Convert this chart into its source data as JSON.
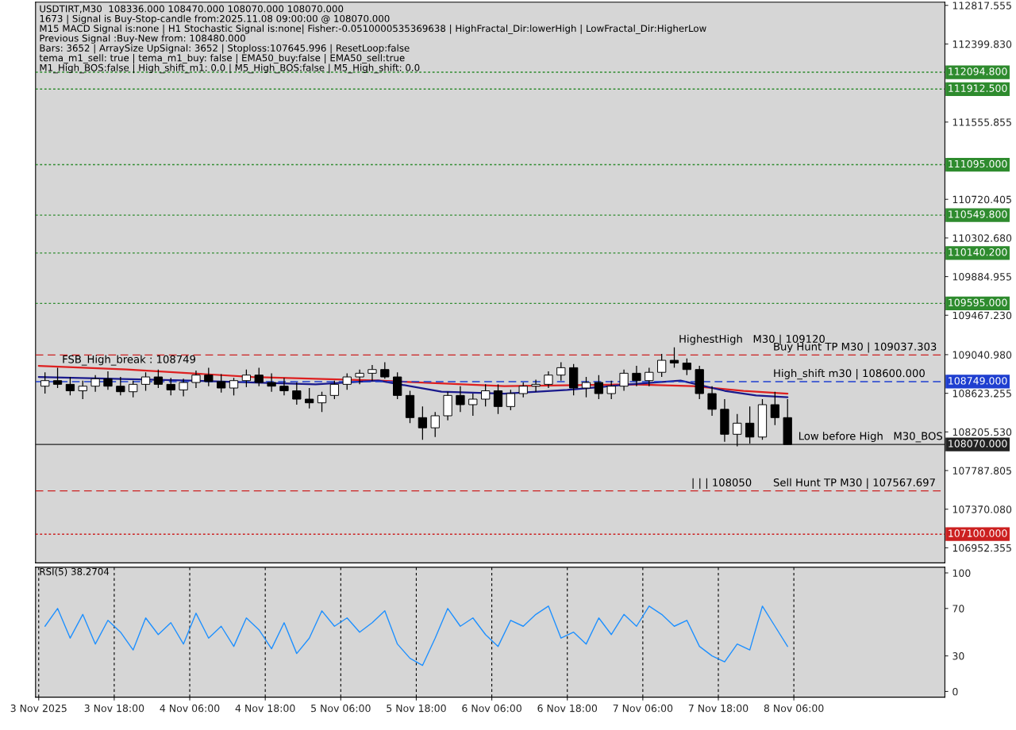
{
  "chart_data": [
    {
      "type": "candlestick",
      "title": "USDTIRT,M30  108336.000 108470.000 108070.000 108070.000",
      "x": [
        "2025-11-03T07:00",
        "2025-11-03T09:00",
        "2025-11-03T11:00",
        "2025-11-03T13:00",
        "2025-11-03T15:00",
        "2025-11-03T17:00",
        "2025-11-03T19:00",
        "2025-11-03T21:00",
        "2025-11-03T23:00",
        "2025-11-04T01:00",
        "2025-11-04T03:00",
        "2025-11-04T05:00",
        "2025-11-04T07:00",
        "2025-11-04T09:00",
        "2025-11-04T11:00",
        "2025-11-04T13:00",
        "2025-11-04T15:00",
        "2025-11-04T17:00",
        "2025-11-04T19:00",
        "2025-11-04T21:00",
        "2025-11-04T23:00",
        "2025-11-05T01:00",
        "2025-11-05T03:00",
        "2025-11-05T05:00",
        "2025-11-05T07:00",
        "2025-11-05T09:00",
        "2025-11-05T11:00",
        "2025-11-05T13:00",
        "2025-11-05T15:00",
        "2025-11-05T17:00",
        "2025-11-05T19:00",
        "2025-11-05T21:00",
        "2025-11-05T23:00",
        "2025-11-06T01:00",
        "2025-11-06T03:00",
        "2025-11-06T05:00",
        "2025-11-06T07:00",
        "2025-11-06T09:00",
        "2025-11-06T11:00",
        "2025-11-06T13:00",
        "2025-11-06T15:00",
        "2025-11-06T17:00",
        "2025-11-06T19:00",
        "2025-11-06T21:00",
        "2025-11-06T23:00",
        "2025-11-07T01:00",
        "2025-11-07T03:00",
        "2025-11-07T05:00",
        "2025-11-07T07:00",
        "2025-11-07T09:00",
        "2025-11-07T11:00",
        "2025-11-07T13:00",
        "2025-11-07T15:00",
        "2025-11-07T17:00",
        "2025-11-07T19:00",
        "2025-11-07T21:00",
        "2025-11-07T23:00",
        "2025-11-08T01:00",
        "2025-11-08T03:00",
        "2025-11-08T05:00"
      ],
      "ohlc": [
        [
          108700,
          108850,
          108620,
          108760
        ],
        [
          108760,
          108900,
          108680,
          108720
        ],
        [
          108720,
          108800,
          108600,
          108650
        ],
        [
          108650,
          108760,
          108560,
          108700
        ],
        [
          108700,
          108820,
          108640,
          108780
        ],
        [
          108780,
          108860,
          108660,
          108700
        ],
        [
          108700,
          108800,
          108600,
          108640
        ],
        [
          108640,
          108760,
          108580,
          108720
        ],
        [
          108720,
          108850,
          108650,
          108800
        ],
        [
          108800,
          108880,
          108680,
          108720
        ],
        [
          108720,
          108790,
          108600,
          108660
        ],
        [
          108660,
          108780,
          108590,
          108740
        ],
        [
          108740,
          108870,
          108680,
          108820
        ],
        [
          108820,
          108900,
          108700,
          108750
        ],
        [
          108750,
          108830,
          108630,
          108680
        ],
        [
          108680,
          108790,
          108600,
          108760
        ],
        [
          108760,
          108880,
          108690,
          108820
        ],
        [
          108820,
          108900,
          108700,
          108740
        ],
        [
          108740,
          108840,
          108640,
          108700
        ],
        [
          108700,
          108790,
          108600,
          108650
        ],
        [
          108650,
          108740,
          108500,
          108560
        ],
        [
          108560,
          108680,
          108460,
          108520
        ],
        [
          108520,
          108640,
          108420,
          108600
        ],
        [
          108600,
          108760,
          108560,
          108720
        ],
        [
          108720,
          108840,
          108660,
          108800
        ],
        [
          108800,
          108880,
          108720,
          108840
        ],
        [
          108840,
          108930,
          108760,
          108880
        ],
        [
          108880,
          108960,
          108780,
          108800
        ],
        [
          108800,
          108850,
          108560,
          108600
        ],
        [
          108600,
          108650,
          108300,
          108360
        ],
        [
          108360,
          108480,
          108120,
          108250
        ],
        [
          108250,
          108420,
          108150,
          108380
        ],
        [
          108380,
          108640,
          108330,
          108600
        ],
        [
          108600,
          108700,
          108420,
          108500
        ],
        [
          108500,
          108620,
          108380,
          108560
        ],
        [
          108560,
          108720,
          108480,
          108650
        ],
        [
          108650,
          108720,
          108400,
          108480
        ],
        [
          108480,
          108660,
          108440,
          108620
        ],
        [
          108620,
          108740,
          108580,
          108700
        ],
        [
          108700,
          108770,
          108640,
          108720
        ],
        [
          108720,
          108860,
          108680,
          108820
        ],
        [
          108820,
          108960,
          108760,
          108900
        ],
        [
          108900,
          108940,
          108600,
          108680
        ],
        [
          108680,
          108800,
          108580,
          108740
        ],
        [
          108740,
          108820,
          108560,
          108620
        ],
        [
          108620,
          108760,
          108560,
          108700
        ],
        [
          108700,
          108880,
          108650,
          108840
        ],
        [
          108840,
          108920,
          108700,
          108760
        ],
        [
          108760,
          108900,
          108700,
          108850
        ],
        [
          108850,
          109050,
          108800,
          108980
        ],
        [
          108980,
          109120,
          108900,
          108950
        ],
        [
          108950,
          109000,
          108820,
          108880
        ],
        [
          108880,
          108920,
          108560,
          108620
        ],
        [
          108620,
          108700,
          108380,
          108450
        ],
        [
          108450,
          108560,
          108100,
          108180
        ],
        [
          108180,
          108400,
          108050,
          108300
        ],
        [
          108300,
          108480,
          108080,
          108150
        ],
        [
          108150,
          108560,
          108120,
          108500
        ],
        [
          108500,
          108640,
          108280,
          108360
        ],
        [
          108360,
          108560,
          108070,
          108070
        ]
      ],
      "series": [
        {
          "type": "line",
          "color": "#dd2020",
          "x": [
            "2025-11-03T06:00",
            "2025-11-03T20:00",
            "2025-11-04T16:00",
            "2025-11-05T12:00",
            "2025-11-06T08:00",
            "2025-11-07T04:00",
            "2025-11-07T14:00",
            "2025-11-07T22:00",
            "2025-11-08T05:00"
          ],
          "values": [
            108920,
            108880,
            108800,
            108760,
            108700,
            108720,
            108700,
            108650,
            108620
          ]
        },
        {
          "type": "line",
          "color": "#1a1a8c",
          "x": [
            "2025-11-03T06:00",
            "2025-11-04T06:00",
            "2025-11-05T02:00",
            "2025-11-05T12:00",
            "2025-11-05T22:00",
            "2025-11-06T08:00",
            "2025-11-06T18:00",
            "2025-11-07T04:00",
            "2025-11-07T12:00",
            "2025-11-07T19:00",
            "2025-11-08T00:00",
            "2025-11-08T05:00"
          ],
          "values": [
            108800,
            108760,
            108720,
            108760,
            108640,
            108620,
            108660,
            108720,
            108760,
            108650,
            108600,
            108580
          ]
        }
      ],
      "ref_lines": [
        {
          "axis": "y",
          "value": 112094.8,
          "label": "112094.800",
          "color": "#2e8b2e",
          "line_style": "dotted"
        },
        {
          "axis": "y",
          "value": 111912.5,
          "label": "111912.500",
          "color": "#2e8b2e",
          "line_style": "dotted"
        },
        {
          "axis": "y",
          "value": 111095,
          "label": "111095.000",
          "color": "#2e8b2e",
          "line_style": "dotted"
        },
        {
          "axis": "y",
          "value": 110549.8,
          "label": "110549.800",
          "color": "#2e8b2e",
          "line_style": "dotted"
        },
        {
          "axis": "y",
          "value": 110140.2,
          "label": "110140.200",
          "color": "#2e8b2e",
          "line_style": "dotted"
        },
        {
          "axis": "y",
          "value": 109595,
          "label": "109595.000",
          "color": "#2e8b2e",
          "line_style": "dotted"
        },
        {
          "axis": "y",
          "value": 108749,
          "label": "108749.000",
          "color": "#1f3fd0",
          "line_style": "dashed"
        },
        {
          "axis": "y",
          "value": 108070,
          "label": "108070.000",
          "color": "#222222",
          "line_style": "solid"
        },
        {
          "axis": "y",
          "value": 107100,
          "label": "107100.000",
          "color": "#cc2020",
          "line_style": "dotted"
        },
        {
          "axis": "y",
          "value": 109037.303,
          "color": "#cc2020",
          "line_style": "dashed"
        },
        {
          "axis": "y",
          "value": 107567.697,
          "color": "#cc2020",
          "line_style": "dashed"
        }
      ],
      "annotations": [
        "1673 | Signal is Buy-Stop-candle from:2025.11.08 09:00:00 @ 108070.000",
        "M15 MACD Signal is:none | H1 Stochastic Signal is:none| Fisher:-0.0510000535369638 | HighFractal_Dir:lowerHigh | LowFractal_Dir:HigherLow",
        "Previous Signal :Buy-New from: 108480.000",
        "Bars: 3652 | ArraySize UpSignal: 3652 | Stoploss:107645.996 | ResetLoop:false",
        "tema_m1_sell: true | tema_m1_buy: false | EMA50_buy:false | EMA50_sell:true",
        "M1_High_BOS:false | High_shift_m1: 0.0 | M5_High_BOS:false | M5_High_shift: 0.0",
        {
          "text": "FSB_High_break : 108749",
          "x": "2025-11-03T09:00",
          "y": 108900
        },
        {
          "text": "HighestHigh   M30 | 109120",
          "x": "2025-11-07T11:00",
          "y": 109120
        },
        {
          "text": "Buy Hunt TP M30 | 109037.303",
          "x": "2025-11-08T02:00",
          "y": 109037.303
        },
        {
          "text": "High_shift m30 | 108600.000",
          "x": "2025-11-08T02:00",
          "y": 108749
        },
        {
          "text": "Low before High   M30_BOS",
          "x": "2025-11-08T06:00",
          "y": 108070
        },
        {
          "text": "| | | 108050",
          "x": "2025-11-07T13:00",
          "y": 107567.697
        },
        {
          "text": "Sell Hunt TP M30 | 107567.697",
          "x": "2025-11-08T02:00",
          "y": 107567.697
        }
      ],
      "xlim": [
        "2025-11-03T05:30",
        "2025-11-09T06:00"
      ],
      "ylim": [
        106790,
        112852
      ],
      "yticks": [
        {
          "value": 112817.555,
          "label": "112817.555"
        },
        {
          "value": 112399.83,
          "label": "112399.830"
        },
        {
          "value": 111555.855,
          "label": "111555.855"
        },
        {
          "value": 110720.405,
          "label": "110720.405"
        },
        {
          "value": 110302.68,
          "label": "110302.680"
        },
        {
          "value": 109884.955,
          "label": "109884.955"
        },
        {
          "value": 109467.23,
          "label": "109467.230"
        },
        {
          "value": 109040.98,
          "label": "109040.980"
        },
        {
          "value": 108623.255,
          "label": "108623.255"
        },
        {
          "value": 108205.53,
          "label": "108205.530"
        },
        {
          "value": 107787.805,
          "label": "107787.805"
        },
        {
          "value": 107370.08,
          "label": "107370.080"
        },
        {
          "value": 106952.355,
          "label": "106952.355"
        }
      ],
      "tick_labels": "y",
      "grid": false
    },
    {
      "type": "line",
      "title": "RSI(5) 38.2704",
      "x": [
        "2025-11-03T07:00",
        "2025-11-03T09:00",
        "2025-11-03T11:00",
        "2025-11-03T13:00",
        "2025-11-03T15:00",
        "2025-11-03T17:00",
        "2025-11-03T19:00",
        "2025-11-03T21:00",
        "2025-11-03T23:00",
        "2025-11-04T01:00",
        "2025-11-04T03:00",
        "2025-11-04T05:00",
        "2025-11-04T07:00",
        "2025-11-04T09:00",
        "2025-11-04T11:00",
        "2025-11-04T13:00",
        "2025-11-04T15:00",
        "2025-11-04T17:00",
        "2025-11-04T19:00",
        "2025-11-04T21:00",
        "2025-11-04T23:00",
        "2025-11-05T01:00",
        "2025-11-05T03:00",
        "2025-11-05T05:00",
        "2025-11-05T07:00",
        "2025-11-05T09:00",
        "2025-11-05T11:00",
        "2025-11-05T13:00",
        "2025-11-05T15:00",
        "2025-11-05T17:00",
        "2025-11-05T19:00",
        "2025-11-05T21:00",
        "2025-11-05T23:00",
        "2025-11-06T01:00",
        "2025-11-06T03:00",
        "2025-11-06T05:00",
        "2025-11-06T07:00",
        "2025-11-06T09:00",
        "2025-11-06T11:00",
        "2025-11-06T13:00",
        "2025-11-06T15:00",
        "2025-11-06T17:00",
        "2025-11-06T19:00",
        "2025-11-06T21:00",
        "2025-11-06T23:00",
        "2025-11-07T01:00",
        "2025-11-07T03:00",
        "2025-11-07T05:00",
        "2025-11-07T07:00",
        "2025-11-07T09:00",
        "2025-11-07T11:00",
        "2025-11-07T13:00",
        "2025-11-07T15:00",
        "2025-11-07T17:00",
        "2025-11-07T19:00",
        "2025-11-07T21:00",
        "2025-11-07T23:00",
        "2025-11-08T01:00",
        "2025-11-08T03:00",
        "2025-11-08T05:00"
      ],
      "series": [
        {
          "color": "#1e90ff",
          "values": [
            55,
            70,
            45,
            65,
            40,
            60,
            50,
            35,
            62,
            48,
            58,
            40,
            66,
            45,
            55,
            38,
            62,
            52,
            36,
            58,
            32,
            45,
            68,
            55,
            62,
            50,
            58,
            68,
            40,
            28,
            22,
            45,
            70,
            55,
            62,
            48,
            38,
            60,
            55,
            65,
            72,
            45,
            50,
            40,
            62,
            48,
            65,
            55,
            72,
            65,
            55,
            60,
            38,
            30,
            25,
            40,
            35,
            72,
            55,
            38
          ]
        }
      ],
      "xlim": [
        "2025-11-03T05:30",
        "2025-11-09T06:00"
      ],
      "ylim": [
        -4.8,
        104.8
      ],
      "yticks": [
        0,
        30,
        70,
        100
      ],
      "xticks": [
        {
          "value": "2025-11-03T06:00",
          "label": "3 Nov 2025"
        },
        {
          "value": "2025-11-03T18:00",
          "label": "3 Nov 18:00"
        },
        {
          "value": "2025-11-04T06:00",
          "label": "4 Nov 06:00"
        },
        {
          "value": "2025-11-04T18:00",
          "label": "4 Nov 18:00"
        },
        {
          "value": "2025-11-05T06:00",
          "label": "5 Nov 06:00"
        },
        {
          "value": "2025-11-05T18:00",
          "label": "5 Nov 18:00"
        },
        {
          "value": "2025-11-06T06:00",
          "label": "6 Nov 06:00"
        },
        {
          "value": "2025-11-06T18:00",
          "label": "6 Nov 18:00"
        },
        {
          "value": "2025-11-07T06:00",
          "label": "7 Nov 06:00"
        },
        {
          "value": "2025-11-07T18:00",
          "label": "7 Nov 18:00"
        },
        {
          "value": "2025-11-08T06:00",
          "label": "8 Nov 06:00"
        }
      ],
      "grid": "x"
    }
  ]
}
